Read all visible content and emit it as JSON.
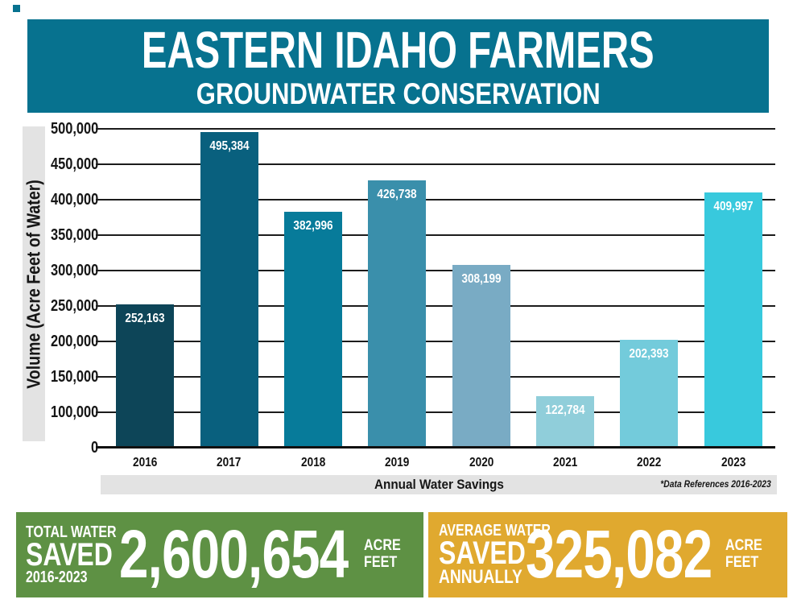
{
  "header": {
    "title": "EASTERN IDAHO FARMERS",
    "subtitle": "GROUNDWATER CONSERVATION"
  },
  "chart_data": {
    "type": "bar",
    "title": "Annual Water Savings",
    "ylabel": "Volume (Acre Feet of Water)",
    "xlabel": "Annual Water Savings",
    "footnote": "*Data References 2016-2023",
    "categories": [
      "2016",
      "2017",
      "2018",
      "2019",
      "2020",
      "2021",
      "2022",
      "2023"
    ],
    "values": [
      252163,
      495384,
      382996,
      426738,
      308199,
      122784,
      202393,
      409997
    ],
    "value_labels": [
      "252,163",
      "495,384",
      "382,996",
      "426,738",
      "308,199",
      "122,784",
      "202,393",
      "409,997"
    ],
    "bar_colors": [
      "#0d4558",
      "#09607e",
      "#077b9a",
      "#3a8fab",
      "#79abc4",
      "#90ceda",
      "#73cbdb",
      "#38c9dd"
    ],
    "y_ticks": [
      "500,000",
      "450,000",
      "400,000",
      "350,000",
      "300,000",
      "250,000",
      "200,000",
      "150,000",
      "100,000",
      "0"
    ],
    "ylim": [
      0,
      500000
    ],
    "grid": true,
    "legend": "none",
    "axis_note": "y-axis has equal visual spacing per tick; 50,000 tick is omitted so the bottom interval spans 0-100,000"
  },
  "footer": {
    "total": {
      "label_line1": "TOTAL WATER",
      "label_line2": "SAVED",
      "label_line3": "2016-2023",
      "value": "2,600,654",
      "unit_line1": "ACRE",
      "unit_line2": "FEET"
    },
    "average": {
      "label_line1": "AVERAGE WATER",
      "label_line2": "SAVED",
      "label_line3": "ANNUALLY",
      "value": "325,082",
      "unit_line1": "ACRE",
      "unit_line2": "FEET"
    }
  },
  "colors": {
    "header_bg": "#07728f",
    "axis_strip_bg": "#e3e3e3",
    "total_bg": "#5e9144",
    "average_bg": "#e0a92f",
    "text_light": "#ffffff",
    "text_dark": "#161616"
  }
}
